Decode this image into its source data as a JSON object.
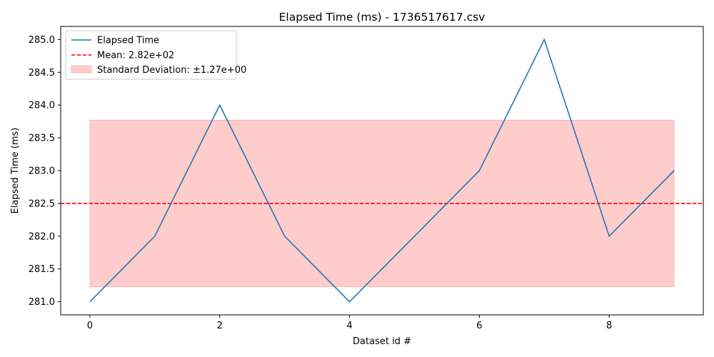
{
  "chart_data": {
    "type": "line",
    "title": "Elapsed Time (ms) - 1736517617.csv",
    "xlabel": "Dataset id #",
    "ylabel": "Elapsed Time (ms)",
    "x": [
      0,
      1,
      2,
      3,
      4,
      5,
      6,
      7,
      8,
      9
    ],
    "series": [
      {
        "name": "Elapsed Time",
        "values": [
          281,
          282,
          284,
          282,
          281,
          282,
          283,
          285,
          282,
          283
        ],
        "color": "#1f77b4"
      }
    ],
    "mean": {
      "value": 282.5,
      "label": "Mean: 2.82e+02",
      "color": "#ff0000"
    },
    "std_band": {
      "lower": 281.23,
      "upper": 283.77,
      "label": "Standard Deviation: ±1.27e+00",
      "color": "#ff0000"
    },
    "xlim": [
      -0.45,
      9.45
    ],
    "ylim": [
      280.8,
      285.2
    ],
    "x_ticks": [
      0,
      2,
      4,
      6,
      8
    ],
    "x_tick_labels": [
      "0",
      "2",
      "4",
      "6",
      "8"
    ],
    "y_ticks": [
      281.0,
      281.5,
      282.0,
      282.5,
      283.0,
      283.5,
      284.0,
      284.5,
      285.0
    ],
    "y_tick_labels": [
      "281.0",
      "281.5",
      "282.0",
      "282.5",
      "283.0",
      "283.5",
      "284.0",
      "284.5",
      "285.0"
    ],
    "grid": false,
    "legend_position": "top-left"
  }
}
